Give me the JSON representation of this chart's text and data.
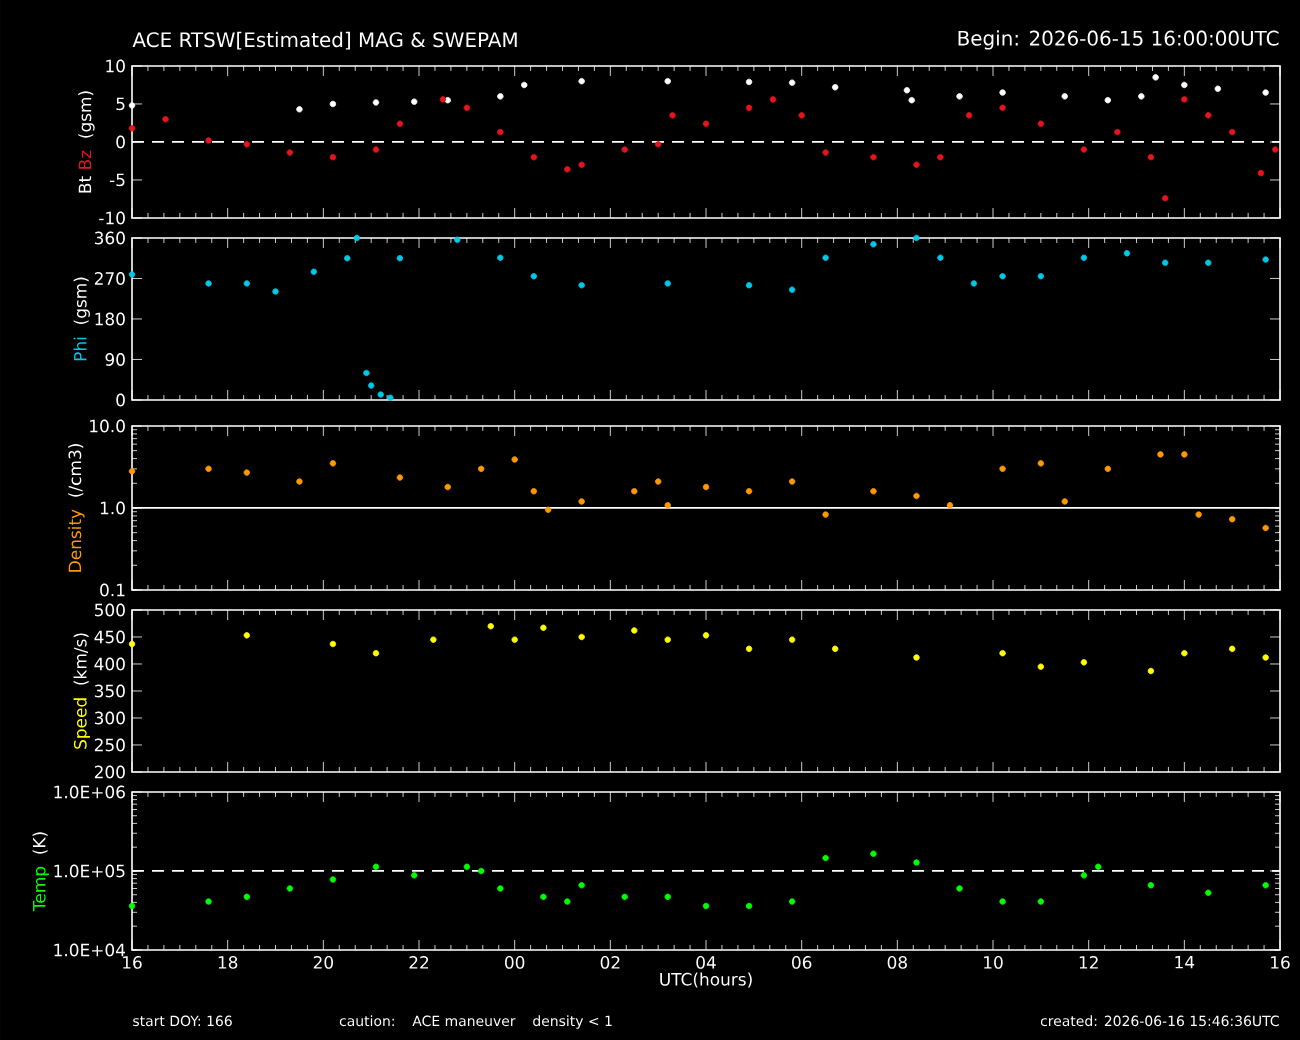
{
  "chart_data": [
    {
      "type": "scatter",
      "marker": "circle",
      "title": "ACE RTSW[Estimated] MAG & SWEPAM",
      "subtitle": "Begin: 2026-06-15 16:00:00UTC",
      "ylabel": "(gsm)",
      "tick_labels": "y",
      "xlim": [
        "2026-06-15T16:00",
        "2026-06-16T16:00"
      ],
      "xticks": [
        {
          "value": "2026-06-15T16:00",
          "label": null
        },
        {
          "value": "2026-06-15T18:00",
          "label": null
        },
        {
          "value": "2026-06-15T20:00",
          "label": null
        },
        {
          "value": "2026-06-15T22:00",
          "label": null
        },
        {
          "value": "2026-06-16T00:00",
          "label": null
        },
        {
          "value": "2026-06-16T02:00",
          "label": null
        },
        {
          "value": "2026-06-16T04:00",
          "label": null
        },
        {
          "value": "2026-06-16T06:00",
          "label": null
        },
        {
          "value": "2026-06-16T08:00",
          "label": null
        },
        {
          "value": "2026-06-16T10:00",
          "label": null
        },
        {
          "value": "2026-06-16T12:00",
          "label": null
        },
        {
          "value": "2026-06-16T14:00",
          "label": null
        },
        {
          "value": "2026-06-16T16:00",
          "label": null
        }
      ],
      "ylim": [
        -10,
        10
      ],
      "yticks": [
        -10,
        -5,
        0,
        5,
        10
      ],
      "ref_lines": [
        {
          "axis": "y",
          "value": 0,
          "color": "#ffffff",
          "line_style": "dashed"
        }
      ],
      "series": [
        {
          "name": "Bt",
          "color": "#ffffff",
          "x": [
            "2026-06-15T16:00",
            "2026-06-15T19:30",
            "2026-06-15T20:12",
            "2026-06-15T21:06",
            "2026-06-15T21:54",
            "2026-06-15T22:36",
            "2026-06-15T23:42",
            "2026-06-16T00:12",
            "2026-06-16T01:24",
            "2026-06-16T03:12",
            "2026-06-16T04:54",
            "2026-06-16T05:48",
            "2026-06-16T06:42",
            "2026-06-16T08:12",
            "2026-06-16T08:18",
            "2026-06-16T09:18",
            "2026-06-16T10:12",
            "2026-06-16T11:30",
            "2026-06-16T12:24",
            "2026-06-16T13:06",
            "2026-06-16T13:24",
            "2026-06-16T14:00",
            "2026-06-16T14:42",
            "2026-06-16T15:42"
          ],
          "values": [
            4.8,
            4.3,
            5.0,
            5.2,
            5.3,
            5.5,
            6.0,
            7.5,
            8.0,
            8.0,
            7.9,
            7.8,
            7.2,
            6.8,
            5.5,
            6.0,
            6.5,
            6.0,
            5.5,
            6.0,
            8.5,
            7.5,
            7.0,
            6.5
          ]
        },
        {
          "name": "Bz",
          "color": "#e8141c",
          "x": [
            "2026-06-15T16:00",
            "2026-06-15T16:42",
            "2026-06-15T17:36",
            "2026-06-15T18:24",
            "2026-06-15T19:18",
            "2026-06-15T20:12",
            "2026-06-15T21:06",
            "2026-06-15T21:36",
            "2026-06-15T22:30",
            "2026-06-15T23:00",
            "2026-06-15T23:42",
            "2026-06-16T00:24",
            "2026-06-16T01:06",
            "2026-06-16T01:24",
            "2026-06-16T02:18",
            "2026-06-16T03:00",
            "2026-06-16T03:18",
            "2026-06-16T04:00",
            "2026-06-16T04:54",
            "2026-06-16T05:24",
            "2026-06-16T06:00",
            "2026-06-16T06:30",
            "2026-06-16T07:30",
            "2026-06-16T08:24",
            "2026-06-16T08:54",
            "2026-06-16T09:30",
            "2026-06-16T10:12",
            "2026-06-16T11:00",
            "2026-06-16T11:54",
            "2026-06-16T12:36",
            "2026-06-16T13:18",
            "2026-06-16T13:36",
            "2026-06-16T14:00",
            "2026-06-16T14:30",
            "2026-06-16T15:00",
            "2026-06-16T15:36",
            "2026-06-16T15:54"
          ],
          "values": [
            1.8,
            3.0,
            0.2,
            -0.3,
            -1.4,
            -2.0,
            -1.0,
            2.4,
            5.6,
            4.5,
            1.3,
            -2.0,
            -3.6,
            -3.0,
            -1.0,
            -0.3,
            3.5,
            2.4,
            4.5,
            5.6,
            3.5,
            -1.4,
            -2.0,
            -3.0,
            -2.0,
            3.5,
            4.5,
            2.4,
            -1.0,
            1.3,
            -2.0,
            -7.4,
            5.6,
            3.5,
            1.3,
            -4.1,
            -1.0
          ]
        }
      ]
    },
    {
      "type": "scatter",
      "marker": "circle",
      "ylabel": "(gsm)",
      "tick_labels": "y",
      "xlim": [
        "2026-06-15T16:00",
        "2026-06-16T16:00"
      ],
      "xticks": [
        {
          "value": "2026-06-15T16:00",
          "label": null
        },
        {
          "value": "2026-06-15T18:00",
          "label": null
        },
        {
          "value": "2026-06-15T20:00",
          "label": null
        },
        {
          "value": "2026-06-15T22:00",
          "label": null
        },
        {
          "value": "2026-06-16T00:00",
          "label": null
        },
        {
          "value": "2026-06-16T02:00",
          "label": null
        },
        {
          "value": "2026-06-16T04:00",
          "label": null
        },
        {
          "value": "2026-06-16T06:00",
          "label": null
        },
        {
          "value": "2026-06-16T08:00",
          "label": null
        },
        {
          "value": "2026-06-16T10:00",
          "label": null
        },
        {
          "value": "2026-06-16T12:00",
          "label": null
        },
        {
          "value": "2026-06-16T14:00",
          "label": null
        },
        {
          "value": "2026-06-16T16:00",
          "label": null
        }
      ],
      "ylim": [
        0,
        360
      ],
      "yticks": [
        0,
        90,
        180,
        270,
        360
      ],
      "series": [
        {
          "name": "Phi",
          "color": "#00c8e6",
          "x": [
            "2026-06-15T16:00",
            "2026-06-15T17:36",
            "2026-06-15T18:24",
            "2026-06-15T19:00",
            "2026-06-15T19:48",
            "2026-06-15T20:30",
            "2026-06-15T20:42",
            "2026-06-15T20:54",
            "2026-06-15T21:00",
            "2026-06-15T21:12",
            "2026-06-15T21:24",
            "2026-06-15T21:36",
            "2026-06-15T22:48",
            "2026-06-15T23:42",
            "2026-06-16T00:24",
            "2026-06-16T01:24",
            "2026-06-16T03:12",
            "2026-06-16T04:54",
            "2026-06-16T05:48",
            "2026-06-16T06:30",
            "2026-06-16T07:30",
            "2026-06-16T08:24",
            "2026-06-16T08:54",
            "2026-06-16T09:36",
            "2026-06-16T10:12",
            "2026-06-16T11:00",
            "2026-06-16T11:54",
            "2026-06-16T12:48",
            "2026-06-16T13:36",
            "2026-06-16T14:30",
            "2026-06-16T15:42"
          ],
          "values": [
            279,
            259,
            259,
            241,
            285,
            315,
            360,
            60,
            32,
            12,
            5,
            315,
            356,
            316,
            275,
            255,
            259,
            255,
            245,
            316,
            346,
            360,
            316,
            259,
            275,
            275,
            316,
            326,
            305,
            305,
            312
          ]
        }
      ]
    },
    {
      "type": "scatter",
      "marker": "circle",
      "ylabel": "(/cm3)",
      "tick_labels": "y",
      "log": "y",
      "xlim": [
        "2026-06-15T16:00",
        "2026-06-16T16:00"
      ],
      "xticks": [
        {
          "value": "2026-06-15T16:00",
          "label": null
        },
        {
          "value": "2026-06-15T18:00",
          "label": null
        },
        {
          "value": "2026-06-15T20:00",
          "label": null
        },
        {
          "value": "2026-06-15T22:00",
          "label": null
        },
        {
          "value": "2026-06-16T00:00",
          "label": null
        },
        {
          "value": "2026-06-16T02:00",
          "label": null
        },
        {
          "value": "2026-06-16T04:00",
          "label": null
        },
        {
          "value": "2026-06-16T06:00",
          "label": null
        },
        {
          "value": "2026-06-16T08:00",
          "label": null
        },
        {
          "value": "2026-06-16T10:00",
          "label": null
        },
        {
          "value": "2026-06-16T12:00",
          "label": null
        },
        {
          "value": "2026-06-16T14:00",
          "label": null
        },
        {
          "value": "2026-06-16T16:00",
          "label": null
        }
      ],
      "ylim": [
        0.1,
        10
      ],
      "yticks": [
        0.1,
        {
          "value": 1,
          "label": "1.0"
        },
        {
          "value": 10,
          "label": "10.0"
        }
      ],
      "ref_lines": [
        {
          "axis": "y",
          "value": 1,
          "color": "#ffffff",
          "line_style": "solid"
        }
      ],
      "series": [
        {
          "name": "Density",
          "color": "#ff9900",
          "x": [
            "2026-06-15T16:00",
            "2026-06-15T17:36",
            "2026-06-15T18:24",
            "2026-06-15T19:30",
            "2026-06-15T20:12",
            "2026-06-15T21:36",
            "2026-06-15T22:36",
            "2026-06-15T23:18",
            "2026-06-16T00:00",
            "2026-06-16T00:24",
            "2026-06-16T00:42",
            "2026-06-16T01:24",
            "2026-06-16T02:30",
            "2026-06-16T03:00",
            "2026-06-16T03:12",
            "2026-06-16T04:00",
            "2026-06-16T04:54",
            "2026-06-16T05:48",
            "2026-06-16T06:30",
            "2026-06-16T07:30",
            "2026-06-16T08:24",
            "2026-06-16T09:06",
            "2026-06-16T10:12",
            "2026-06-16T11:00",
            "2026-06-16T11:30",
            "2026-06-16T12:24",
            "2026-06-16T13:30",
            "2026-06-16T14:00",
            "2026-06-16T14:18",
            "2026-06-16T15:00",
            "2026-06-16T15:42"
          ],
          "values": [
            2.8,
            3.0,
            2.7,
            2.1,
            3.5,
            2.35,
            1.8,
            3.0,
            3.9,
            1.6,
            0.95,
            1.2,
            1.6,
            2.1,
            1.08,
            1.8,
            1.6,
            2.1,
            0.83,
            1.6,
            1.4,
            1.08,
            3.0,
            3.5,
            1.2,
            3.0,
            4.5,
            4.5,
            0.83,
            0.73,
            0.57
          ]
        }
      ]
    },
    {
      "type": "scatter",
      "marker": "circle",
      "ylabel": "(km/s)",
      "tick_labels": "y",
      "xlim": [
        "2026-06-15T16:00",
        "2026-06-16T16:00"
      ],
      "xticks": [
        {
          "value": "2026-06-15T16:00",
          "label": null
        },
        {
          "value": "2026-06-15T18:00",
          "label": null
        },
        {
          "value": "2026-06-15T20:00",
          "label": null
        },
        {
          "value": "2026-06-15T22:00",
          "label": null
        },
        {
          "value": "2026-06-16T00:00",
          "label": null
        },
        {
          "value": "2026-06-16T02:00",
          "label": null
        },
        {
          "value": "2026-06-16T04:00",
          "label": null
        },
        {
          "value": "2026-06-16T06:00",
          "label": null
        },
        {
          "value": "2026-06-16T08:00",
          "label": null
        },
        {
          "value": "2026-06-16T10:00",
          "label": null
        },
        {
          "value": "2026-06-16T12:00",
          "label": null
        },
        {
          "value": "2026-06-16T14:00",
          "label": null
        },
        {
          "value": "2026-06-16T16:00",
          "label": null
        }
      ],
      "ylim": [
        200,
        500
      ],
      "yticks": [
        200,
        250,
        300,
        350,
        400,
        450,
        500
      ],
      "series": [
        {
          "name": "Speed",
          "color": "#ffff00",
          "x": [
            "2026-06-15T16:00",
            "2026-06-15T18:24",
            "2026-06-15T20:12",
            "2026-06-15T21:06",
            "2026-06-15T22:18",
            "2026-06-15T23:30",
            "2026-06-16T00:00",
            "2026-06-16T00:36",
            "2026-06-16T01:24",
            "2026-06-16T02:30",
            "2026-06-16T03:12",
            "2026-06-16T04:00",
            "2026-06-16T04:54",
            "2026-06-16T05:48",
            "2026-06-16T06:42",
            "2026-06-16T08:24",
            "2026-06-16T10:12",
            "2026-06-16T11:00",
            "2026-06-16T11:54",
            "2026-06-16T13:18",
            "2026-06-16T14:00",
            "2026-06-16T15:00",
            "2026-06-16T15:42"
          ],
          "values": [
            437,
            453,
            437,
            420,
            445,
            470,
            445,
            467,
            450,
            462,
            445,
            453,
            428,
            445,
            428,
            412,
            420,
            395,
            403,
            387,
            420,
            428,
            412
          ]
        }
      ]
    },
    {
      "type": "scatter",
      "marker": "circle",
      "ylabel": "(K)",
      "xlabel": "UTC(hours)",
      "log": "y",
      "xlim": [
        "2026-06-15T16:00",
        "2026-06-16T16:00"
      ],
      "xticks": [
        {
          "value": "2026-06-15T16:00",
          "label": "16"
        },
        {
          "value": "2026-06-15T18:00",
          "label": "18"
        },
        {
          "value": "2026-06-15T20:00",
          "label": "20"
        },
        {
          "value": "2026-06-15T22:00",
          "label": "22"
        },
        {
          "value": "2026-06-16T00:00",
          "label": "00"
        },
        {
          "value": "2026-06-16T02:00",
          "label": "02"
        },
        {
          "value": "2026-06-16T04:00",
          "label": "04"
        },
        {
          "value": "2026-06-16T06:00",
          "label": "06"
        },
        {
          "value": "2026-06-16T08:00",
          "label": "08"
        },
        {
          "value": "2026-06-16T10:00",
          "label": "10"
        },
        {
          "value": "2026-06-16T12:00",
          "label": "12"
        },
        {
          "value": "2026-06-16T14:00",
          "label": "14"
        },
        {
          "value": "2026-06-16T16:00",
          "label": "16"
        }
      ],
      "ylim": [
        10000,
        1000000
      ],
      "yticks": [
        {
          "value": 10000,
          "label": "1.0E+04"
        },
        {
          "value": 100000,
          "label": "1.0E+05"
        },
        {
          "value": 1000000,
          "label": "1.0E+06"
        }
      ],
      "ref_lines": [
        {
          "axis": "y",
          "value": 100000,
          "color": "#ffffff",
          "line_style": "dashed"
        }
      ],
      "annotations": [
        "start DOY: 166",
        "caution:",
        "ACE maneuver",
        "density < 1",
        "created: 2026-06-16 15:46:36UTC"
      ],
      "series": [
        {
          "name": "Temp",
          "color": "#00ff00",
          "x": [
            "2026-06-15T16:00",
            "2026-06-15T17:36",
            "2026-06-15T18:24",
            "2026-06-15T19:18",
            "2026-06-15T20:12",
            "2026-06-15T21:06",
            "2026-06-15T21:54",
            "2026-06-15T23:00",
            "2026-06-15T23:18",
            "2026-06-15T23:42",
            "2026-06-16T00:36",
            "2026-06-16T01:06",
            "2026-06-16T01:24",
            "2026-06-16T02:18",
            "2026-06-16T03:12",
            "2026-06-16T04:00",
            "2026-06-16T04:54",
            "2026-06-16T05:48",
            "2026-06-16T06:30",
            "2026-06-16T07:30",
            "2026-06-16T08:24",
            "2026-06-16T09:18",
            "2026-06-16T10:12",
            "2026-06-16T11:00",
            "2026-06-16T11:54",
            "2026-06-16T12:12",
            "2026-06-16T13:18",
            "2026-06-16T14:30",
            "2026-06-16T15:42"
          ],
          "values": [
            36000,
            41000,
            47000,
            60000,
            78000,
            113000,
            88000,
            113000,
            100000,
            60000,
            47000,
            41000,
            66000,
            47000,
            47000,
            36000,
            36000,
            41000,
            146000,
            165000,
            128000,
            60000,
            41000,
            41000,
            88000,
            113000,
            66000,
            53000,
            66000
          ]
        }
      ]
    }
  ]
}
